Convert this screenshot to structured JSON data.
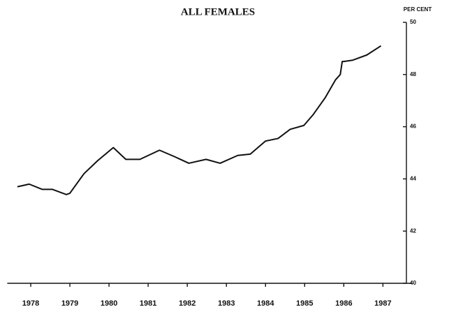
{
  "chart_data": {
    "type": "line",
    "title": "ALL FEMALES",
    "y_axis_label": "PER CENT",
    "x": [
      1977.66,
      1977.96,
      1978.29,
      1978.55,
      1978.91,
      1979.0,
      1979.36,
      1979.71,
      1980.11,
      1980.43,
      1980.79,
      1981.29,
      1981.68,
      1982.04,
      1982.48,
      1982.84,
      1983.29,
      1983.61,
      1984.0,
      1984.32,
      1984.63,
      1984.98,
      1985.21,
      1985.52,
      1985.79,
      1985.91,
      1985.96,
      1986.0,
      1986.23,
      1986.59,
      1986.95
    ],
    "series": [
      {
        "color": "#111111",
        "values": [
          43.7,
          43.8,
          43.6,
          43.6,
          43.4,
          43.45,
          44.2,
          44.7,
          45.2,
          44.75,
          44.75,
          45.1,
          44.85,
          44.6,
          44.75,
          44.6,
          44.9,
          44.95,
          45.45,
          45.55,
          45.9,
          46.05,
          46.45,
          47.1,
          47.8,
          48.0,
          48.5,
          48.5,
          48.55,
          48.75,
          49.1
        ]
      }
    ],
    "xlim": [
      1977.4,
      1987.6
    ],
    "xticks": [
      1978,
      1979,
      1980,
      1981,
      1982,
      1983,
      1984,
      1985,
      1986,
      1987
    ],
    "ylim": [
      40,
      50
    ],
    "yticks": [
      40,
      42,
      44,
      46,
      48,
      50
    ]
  }
}
